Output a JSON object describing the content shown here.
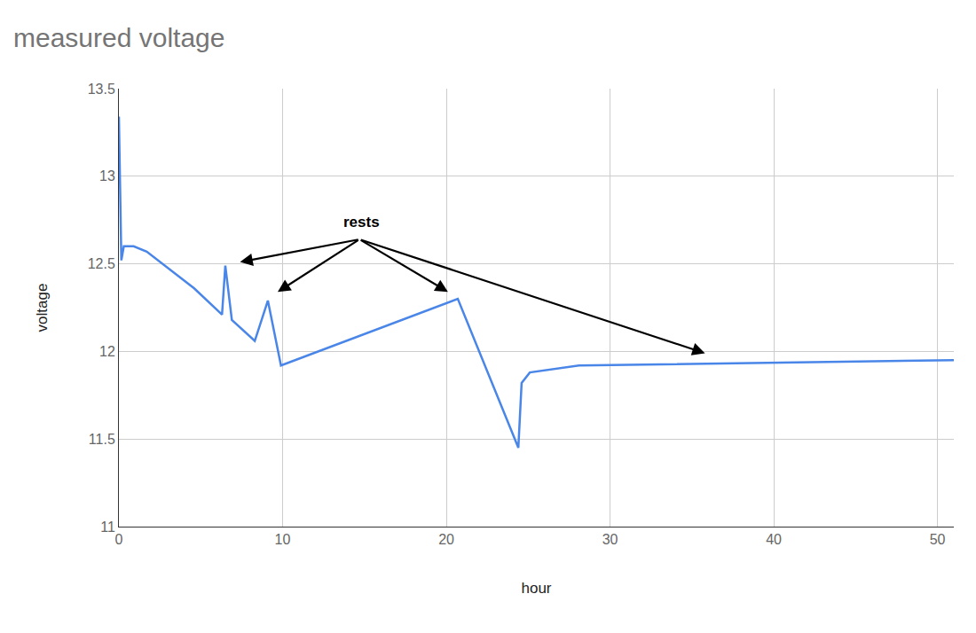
{
  "chart_data": {
    "type": "line",
    "title": "measured voltage",
    "x_label": "hour",
    "y_label": "voltage",
    "series": [
      {
        "name": "voltage",
        "color": "#4a86e8",
        "x": [
          0,
          0.15,
          0.3,
          0.9,
          1.7,
          4.6,
          6.3,
          6.5,
          6.9,
          8.3,
          9.1,
          9.9,
          20.7,
          24.4,
          24.6,
          25.1,
          28.1,
          51
        ],
        "values": [
          13.34,
          12.52,
          12.6,
          12.6,
          12.57,
          12.36,
          12.21,
          12.49,
          12.18,
          12.06,
          12.29,
          11.92,
          12.3,
          11.45,
          11.82,
          11.88,
          11.92,
          11.95
        ]
      }
    ],
    "xlim": [
      0,
      51
    ],
    "xticks": [
      0,
      10,
      20,
      30,
      40,
      50
    ],
    "ylim": [
      11,
      13.5
    ],
    "yticks": [
      11,
      11.5,
      12,
      12.5,
      13,
      13.5
    ],
    "grid": true,
    "annotations": [
      {
        "text": "rests",
        "x": 14.8,
        "y": 12.74,
        "arrow_from": [
          14.7,
          12.64
        ],
        "arrows_to": [
          [
            7.4,
            12.51
          ],
          [
            9.7,
            12.34
          ],
          [
            20.1,
            12.34
          ],
          [
            35.8,
            11.99
          ]
        ]
      }
    ]
  }
}
